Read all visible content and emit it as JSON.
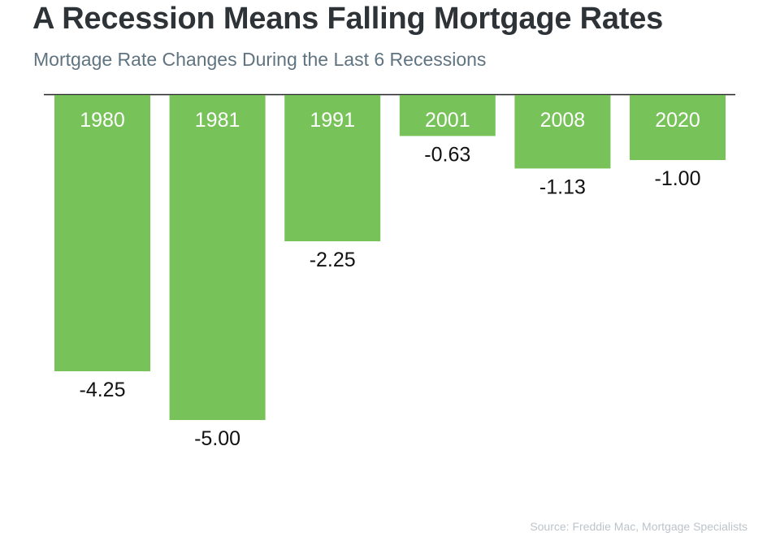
{
  "header": {
    "title": "A Recession Means Falling Mortgage Rates",
    "subtitle": "Mortgage Rate Changes During the Last 6 Recessions"
  },
  "footer": {
    "source": "Source: Freddie Mac, Mortgage Specialists"
  },
  "chart_data": {
    "type": "bar",
    "categories": [
      "1980",
      "1981",
      "1991",
      "2001",
      "2008",
      "2020"
    ],
    "values": [
      -4.25,
      -5.0,
      -2.25,
      -0.63,
      -1.13,
      -1.0
    ],
    "value_labels": [
      "-4.25",
      "-5.00",
      "-2.25",
      "-0.63",
      "-1.13",
      "-1.00"
    ],
    "title": "A Recession Means Falling Mortgage Rates",
    "subtitle": "Mortgage Rate Changes During the Last 6 Recessions",
    "xlabel": "",
    "ylabel": "",
    "ylim": [
      -5,
      0
    ],
    "grid": false,
    "legend": "none",
    "colors": {
      "bar": "#77c35a",
      "category_label": "#ffffff",
      "value_label": "#111111",
      "axis": "#222222"
    }
  }
}
